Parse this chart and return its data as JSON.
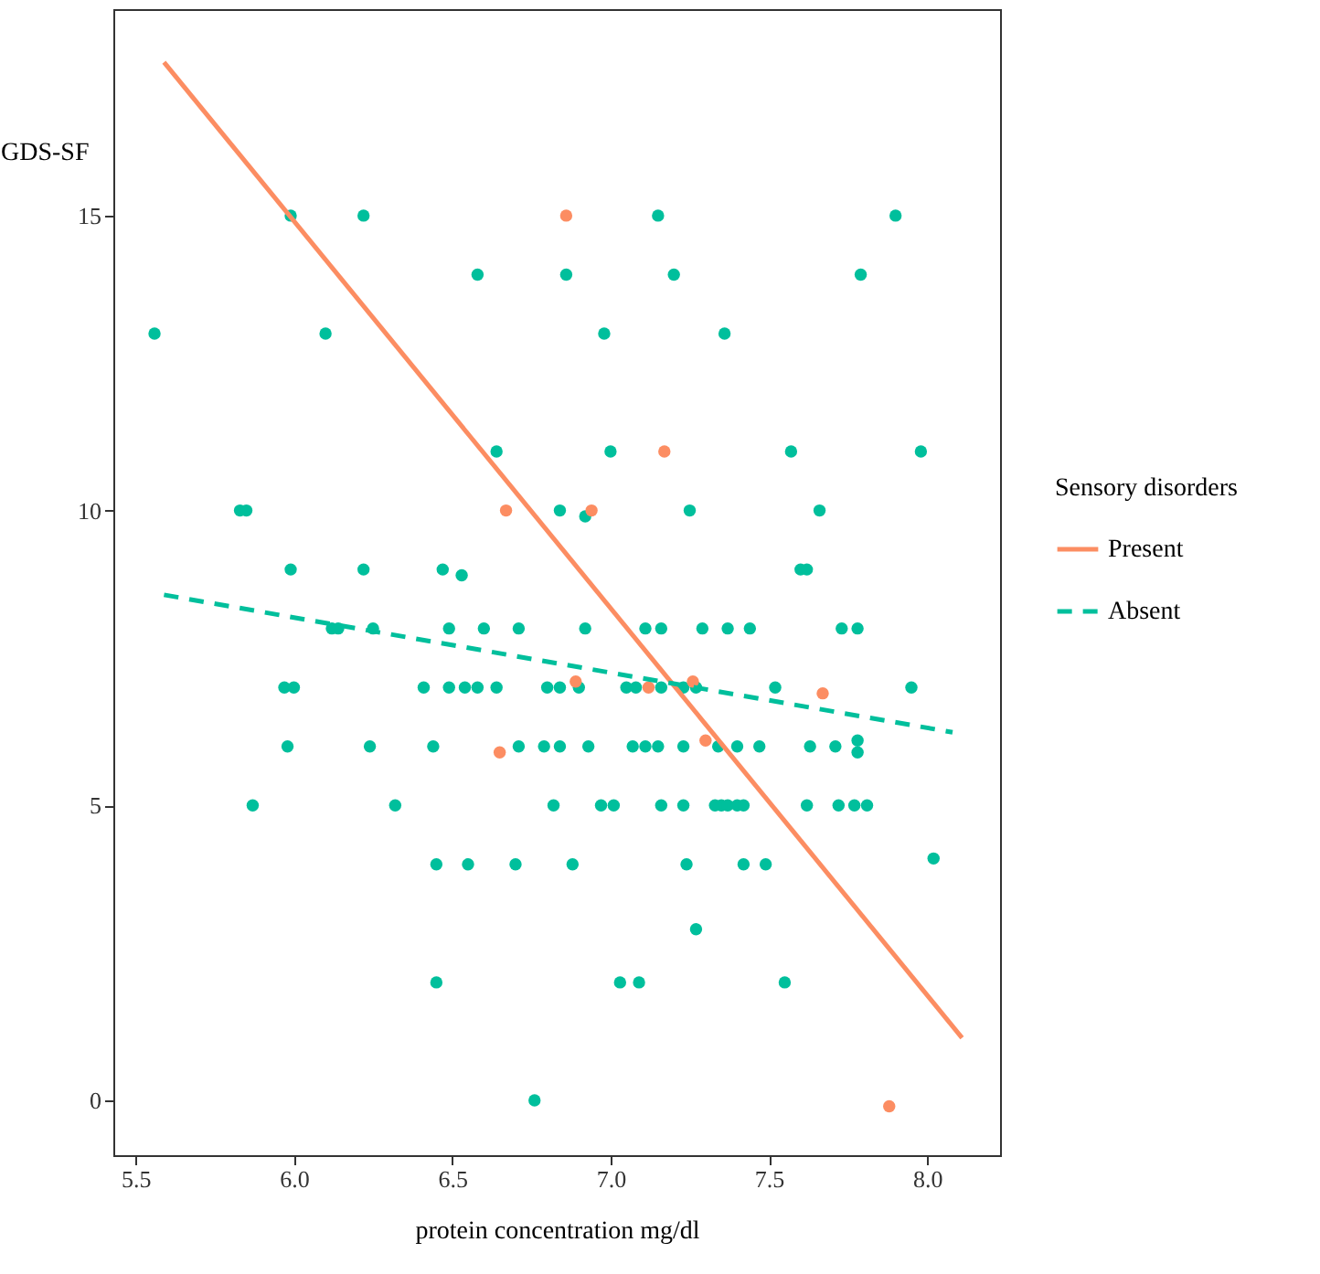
{
  "chart_data": {
    "type": "scatter",
    "xlabel": "protein concentration mg/dl",
    "ylabel": "GDS-SF",
    "legend_title": "Sensory disorders",
    "legend": "right",
    "grid": false,
    "marker": "circle",
    "xlim": [
      5.43,
      8.23
    ],
    "ylim": [
      -0.93,
      18.5
    ],
    "xticks": [
      5.5,
      {
        "value": 6,
        "label": "6.0"
      },
      6.5,
      {
        "value": 7,
        "label": "7.0"
      },
      7.5,
      {
        "value": 8,
        "label": "8.0"
      }
    ],
    "yticks": [
      0,
      5,
      10,
      15
    ],
    "series": [
      {
        "color": "#00bf9c",
        "x": [
          5.99,
          6.22,
          7.15,
          7.9,
          6.58,
          6.86,
          7.2,
          7.79,
          5.56,
          6.1,
          6.98,
          7.36,
          6.64,
          7.0,
          7.57,
          7.98,
          5.83,
          5.85,
          6.84,
          6.92,
          7.25,
          7.66,
          5.99,
          6.22,
          6.47,
          6.53,
          7.6,
          7.62,
          6.12,
          6.14,
          6.25,
          6.49,
          6.6,
          6.71,
          6.92,
          7.11,
          7.16,
          7.29,
          7.37,
          7.44,
          7.73,
          7.78,
          5.97,
          6.0,
          6.41,
          6.49,
          6.54,
          6.58,
          6.64,
          6.8,
          6.84,
          6.9,
          7.05,
          7.08,
          7.16,
          7.23,
          7.27,
          7.52,
          7.95,
          5.98,
          6.24,
          6.44,
          6.71,
          6.79,
          6.84,
          6.93,
          7.07,
          7.11,
          7.15,
          7.23,
          7.34,
          7.4,
          7.47,
          7.63,
          7.71,
          7.78,
          7.78,
          5.87,
          6.32,
          6.82,
          6.97,
          7.01,
          7.16,
          7.23,
          7.33,
          7.35,
          7.37,
          7.4,
          7.42,
          7.62,
          7.72,
          7.77,
          7.81,
          6.45,
          6.55,
          6.7,
          6.88,
          7.24,
          7.42,
          7.49,
          8.02,
          7.27,
          6.45,
          7.03,
          7.09,
          7.55,
          6.76
        ],
        "values": [
          15,
          15,
          15,
          15,
          14,
          14,
          14,
          14,
          13,
          13,
          13,
          13,
          11,
          11,
          11,
          11,
          10,
          10,
          10,
          9.9,
          10,
          10,
          9,
          9,
          9,
          8.9,
          9,
          9,
          8,
          8,
          8,
          8,
          8,
          8,
          8,
          8,
          8,
          8,
          8,
          8,
          8,
          8,
          7,
          7,
          7,
          7,
          7,
          7,
          7,
          7,
          7,
          7,
          7,
          7,
          7,
          7,
          7,
          7,
          7,
          6,
          6,
          6,
          6,
          6,
          6,
          6,
          6,
          6,
          6,
          6,
          6,
          6,
          6,
          6,
          6,
          5.9,
          6.1,
          5,
          5,
          5,
          5,
          5,
          5,
          5,
          5,
          5,
          5,
          5,
          5,
          5,
          5,
          5,
          5,
          4,
          4,
          4,
          4,
          4,
          4,
          4,
          4.1,
          2.9,
          2,
          2,
          2,
          2,
          0
        ]
      },
      {
        "color": "#fc8d62",
        "x": [
          6.86,
          7.17,
          6.67,
          6.94,
          6.89,
          7.12,
          7.26,
          7.67,
          6.65,
          7.3,
          7.88
        ],
        "values": [
          15,
          11,
          10,
          10,
          7.1,
          7,
          7.1,
          6.9,
          5.9,
          6.1,
          -0.1
        ]
      },
      {
        "type": "line",
        "name": "Present",
        "color": "#fc8d62",
        "line_style": "solid",
        "marker": "none",
        "x": [
          5.59,
          8.11
        ],
        "values": [
          17.6,
          1.06
        ]
      },
      {
        "type": "line",
        "name": "Absent",
        "color": "#00bf9c",
        "line_style": "dashed",
        "marker": "none",
        "x": [
          5.59,
          8.08
        ],
        "values": [
          8.57,
          6.24
        ]
      }
    ]
  }
}
